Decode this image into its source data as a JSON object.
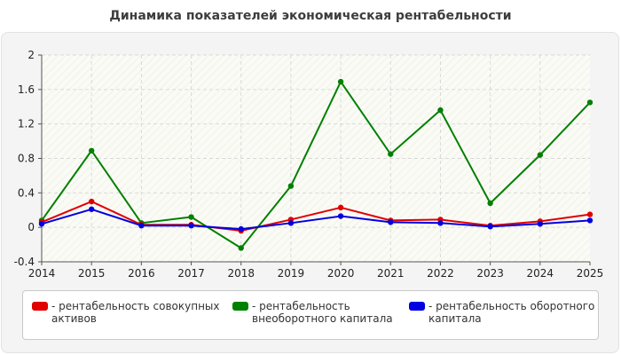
{
  "chart_data": {
    "type": "line",
    "title": "Динамика показателей экономическая рентабельности",
    "categories": [
      "2014",
      "2015",
      "2016",
      "2017",
      "2018",
      "2019",
      "2020",
      "2021",
      "2022",
      "2023",
      "2024",
      "2025"
    ],
    "y_ticks": [
      "2",
      "1.6",
      "1.2",
      "0.8",
      "0.4",
      "0",
      "-0.4"
    ],
    "ylim": [
      -0.4,
      2
    ],
    "grid": true,
    "legend_position": "bottom",
    "series": [
      {
        "name": "- рентабельность совокупных активов",
        "name_lines": [
          "- рентабельность совокупных",
          "активов"
        ],
        "color": "#e00000",
        "values": [
          0.06,
          0.3,
          0.03,
          0.03,
          -0.04,
          0.09,
          0.23,
          0.08,
          0.09,
          0.02,
          0.07,
          0.15
        ]
      },
      {
        "name": "- рентабельность внеоборотного капитала",
        "name_lines": [
          "- рентабельность",
          "внеоборотного капитала"
        ],
        "color": "#008000",
        "values": [
          0.08,
          0.89,
          0.05,
          0.12,
          -0.24,
          0.48,
          1.69,
          0.85,
          1.36,
          0.28,
          0.84,
          1.45
        ]
      },
      {
        "name": "- рентабельность оборотного капитала",
        "name_lines": [
          "- рентабельность оборотного",
          "капитала"
        ],
        "color": "#0000e0",
        "values": [
          0.04,
          0.21,
          0.02,
          0.02,
          -0.02,
          0.05,
          0.13,
          0.06,
          0.05,
          0.01,
          0.04,
          0.08
        ]
      }
    ]
  }
}
